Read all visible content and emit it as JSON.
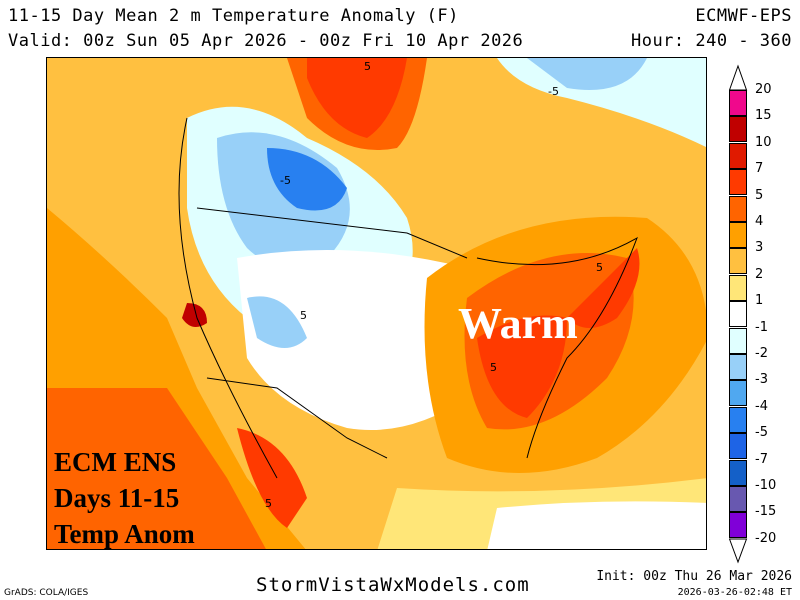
{
  "header": {
    "title": "11-15 Day Mean 2 m Temperature Anomaly (F)",
    "model": "ECMWF-EPS",
    "valid": "Valid: 00z Sun 05 Apr 2026 - 00z Fri 10 Apr 2026",
    "hour": "Hour: 240 - 360"
  },
  "map": {
    "contour_labels": [
      "5",
      "-5",
      "-5",
      "5",
      "5",
      "5",
      "5"
    ],
    "overlay_warm": "Warm",
    "overlay_lines": [
      "ECM ENS",
      "Days 11-15",
      "Temp Anom"
    ]
  },
  "colorbar": {
    "labels": [
      "20",
      "15",
      "10",
      "7",
      "5",
      "4",
      "3",
      "2",
      "1",
      "-1",
      "-2",
      "-3",
      "-4",
      "-5",
      "-7",
      "-10",
      "-15",
      "-20"
    ],
    "colors": [
      "#f0088c",
      "#c00000",
      "#e01a00",
      "#ff3a00",
      "#ff6400",
      "#ffa000",
      "#ffc040",
      "#ffe678",
      "#ffffff",
      "#e0ffff",
      "#98d0f8",
      "#50a8f0",
      "#2880f0",
      "#1e64e6",
      "#1460c8",
      "#6858b0",
      "#8000d8"
    ]
  },
  "footer": {
    "grads": "GrADS: COLA/IGES",
    "site": "StormVistaWxModels.com",
    "init": "Init: 00z Thu 26 Mar 2026",
    "generated": "2026-03-26-02:48 ET"
  }
}
